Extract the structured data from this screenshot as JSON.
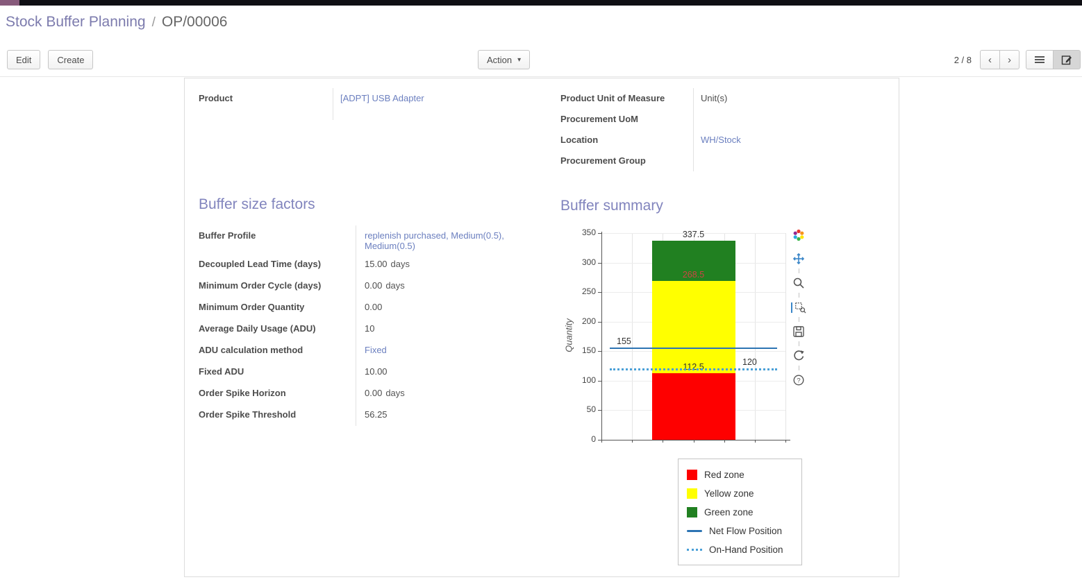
{
  "breadcrumb": {
    "primary": "Stock Buffer Planning",
    "separator": "/",
    "secondary": "OP/00006"
  },
  "toolbar": {
    "edit_label": "Edit",
    "create_label": "Create",
    "action_label": "Action",
    "action_caret": "▾",
    "pager_text": "2 / 8",
    "prev_icon": "‹",
    "next_icon": "›"
  },
  "form": {
    "product": {
      "label": "Product",
      "value": "[ADPT] USB Adapter"
    },
    "right_rows": [
      {
        "label": "Product Unit of Measure",
        "value": "Unit(s)",
        "link": false
      },
      {
        "label": "Procurement UoM",
        "value": "",
        "link": false
      },
      {
        "label": "Location",
        "value": "WH/Stock",
        "link": true
      },
      {
        "label": "Procurement Group",
        "value": "",
        "link": false
      }
    ]
  },
  "factors": {
    "title": "Buffer size factors",
    "rows": [
      {
        "label": "Buffer Profile",
        "value": "replenish purchased, Medium(0.5), Medium(0.5)",
        "link": true
      },
      {
        "label": "Decoupled Lead Time (days)",
        "value": "15.00",
        "unit": "days"
      },
      {
        "label": "Minimum Order Cycle (days)",
        "value": "0.00",
        "unit": "days"
      },
      {
        "label": "Minimum Order Quantity",
        "value": "0.00"
      },
      {
        "label": "Average Daily Usage (ADU)",
        "value": "10"
      },
      {
        "label": "ADU calculation method",
        "value": "Fixed",
        "link": true
      },
      {
        "label": "Fixed ADU",
        "value": "10.00"
      },
      {
        "label": "Order Spike Horizon",
        "value": "0.00",
        "unit": "days"
      },
      {
        "label": "Order Spike Threshold",
        "value": "56.25"
      }
    ]
  },
  "summary": {
    "title": "Buffer summary",
    "chart_data": {
      "type": "bar",
      "title": "",
      "ylabel": "Quantity",
      "ylim": [
        0,
        350
      ],
      "yticks": [
        0,
        50,
        100,
        150,
        200,
        250,
        300,
        350
      ],
      "grid": true,
      "zones": [
        {
          "name": "Red zone",
          "from": 0,
          "to": 112.5,
          "color": "#fe0000",
          "label": "112.5",
          "label_color": "#333333"
        },
        {
          "name": "Yellow zone",
          "from": 112.5,
          "to": 268.5,
          "color": "#ffff00",
          "label": "268.5",
          "label_color": "#cc4444"
        },
        {
          "name": "Green zone",
          "from": 268.5,
          "to": 337.5,
          "color": "#218021",
          "label": "337.5",
          "label_color": "#333333"
        }
      ],
      "lines": [
        {
          "name": "Net Flow Position",
          "value": 155,
          "style": "solid",
          "color": "#2c74b3",
          "label": "155",
          "label_side": "left"
        },
        {
          "name": "On-Hand Position",
          "value": 120,
          "style": "dotted",
          "color": "#4aa0d8",
          "label": "120",
          "label_side": "right"
        }
      ],
      "legend_position": "bottom-right"
    },
    "legend": [
      {
        "label": "Red zone",
        "swatch": "box",
        "color": "#fe0000"
      },
      {
        "label": "Yellow zone",
        "swatch": "box",
        "color": "#ffff00"
      },
      {
        "label": "Green zone",
        "swatch": "box",
        "color": "#218021"
      },
      {
        "label": "Net Flow Position",
        "swatch": "line",
        "color": "#2c74b3"
      },
      {
        "label": "On-Hand Position",
        "swatch": "dotted",
        "color": "#4aa0d8"
      }
    ]
  }
}
